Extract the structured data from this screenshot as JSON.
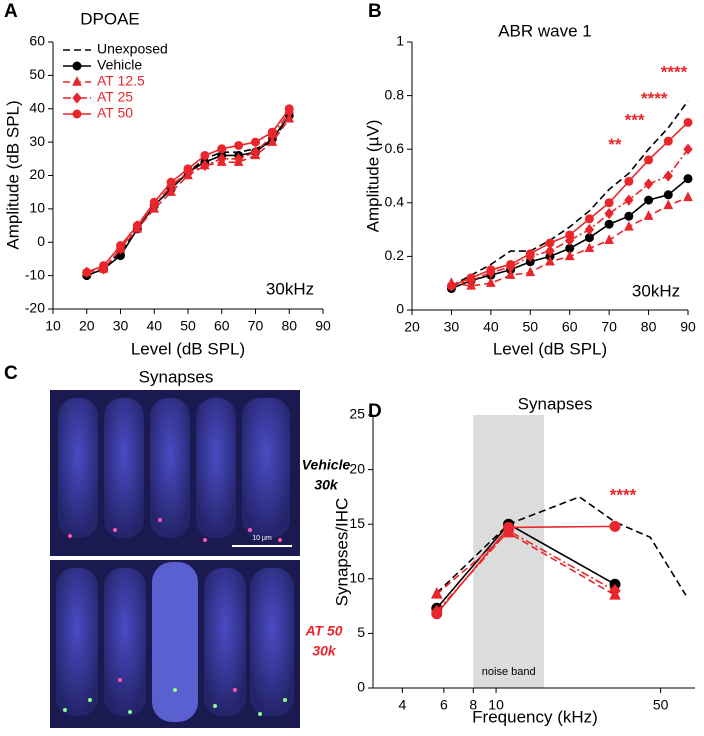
{
  "chart_data": [
    {
      "type": "line",
      "panel_label": "A",
      "title": "DPOAE",
      "xlabel": "Level (dB SPL)",
      "ylabel": "Amplitude (dB SPL)",
      "annotation": "30kHz",
      "x": [
        20,
        25,
        30,
        35,
        40,
        45,
        50,
        55,
        60,
        65,
        70,
        75,
        80
      ],
      "xlim": [
        10,
        90
      ],
      "xticks": [
        10,
        20,
        30,
        40,
        50,
        60,
        70,
        80,
        90
      ],
      "ylim": [
        -20,
        60
      ],
      "yticks": [
        -20,
        -10,
        0,
        10,
        20,
        30,
        40,
        50,
        60
      ],
      "legend": "upper left",
      "series": [
        {
          "name": "Unexposed",
          "color": "#000000",
          "dash": "dashed",
          "values": [
            -10,
            -8,
            -3,
            4,
            11,
            16,
            21,
            25,
            27,
            27,
            28,
            30,
            38
          ]
        },
        {
          "name": "Vehicle",
          "color": "#000000",
          "dash": "solid",
          "marker": "circle",
          "values": [
            -10,
            -8,
            -4,
            4,
            11,
            16,
            21,
            24,
            26,
            26,
            27,
            31,
            38
          ]
        },
        {
          "name": "AT 12.5",
          "color": "#e8262b",
          "dash": "dashed",
          "marker": "triangle",
          "values": [
            -9,
            -8,
            -2,
            4,
            10,
            15,
            20,
            23,
            24,
            24,
            26,
            30,
            37
          ]
        },
        {
          "name": "AT 25",
          "color": "#e8262b",
          "dash": "dashdot",
          "marker": "diamond",
          "values": [
            -9,
            -8,
            -2,
            5,
            11,
            17,
            21,
            23,
            25,
            25,
            27,
            32,
            39
          ]
        },
        {
          "name": "AT 50",
          "color": "#e8262b",
          "dash": "solid",
          "marker": "circle",
          "values": [
            -9,
            -7,
            -1,
            5,
            12,
            18,
            22,
            26,
            28,
            29,
            30,
            33,
            40
          ]
        }
      ]
    },
    {
      "type": "line",
      "panel_label": "B",
      "title": "ABR wave 1",
      "xlabel": "Level (dB SPL)",
      "ylabel": "Amplitude (µV)",
      "annotation": "30kHz",
      "x": [
        30,
        35,
        40,
        45,
        50,
        55,
        60,
        65,
        70,
        75,
        80,
        85,
        90
      ],
      "xlim": [
        20,
        90
      ],
      "xticks": [
        20,
        30,
        40,
        50,
        60,
        70,
        80,
        90
      ],
      "ylim": [
        0,
        1
      ],
      "yticks": [
        0,
        0.2,
        0.4,
        0.6,
        0.8,
        1
      ],
      "significance": [
        {
          "x": 75,
          "text": "**"
        },
        {
          "x": 80,
          "text": "***"
        },
        {
          "x": 85,
          "text": "****"
        },
        {
          "x": 90,
          "text": "****"
        }
      ],
      "significance_color": "#e8262b",
      "series": [
        {
          "color": "#000000",
          "dash": "dashed",
          "values": [
            0.09,
            0.13,
            0.17,
            0.22,
            0.22,
            0.26,
            0.31,
            0.37,
            0.45,
            0.51,
            0.6,
            0.68,
            0.78
          ]
        },
        {
          "color": "#000000",
          "dash": "solid",
          "marker": "circle",
          "values": [
            0.08,
            0.11,
            0.13,
            0.15,
            0.18,
            0.2,
            0.23,
            0.27,
            0.32,
            0.35,
            0.41,
            0.43,
            0.49
          ]
        },
        {
          "color": "#e8262b",
          "dash": "dashed",
          "marker": "triangle",
          "values": [
            0.1,
            0.09,
            0.1,
            0.13,
            0.14,
            0.18,
            0.2,
            0.23,
            0.26,
            0.31,
            0.35,
            0.39,
            0.42
          ]
        },
        {
          "color": "#e8262b",
          "dash": "dashdot",
          "marker": "diamond",
          "values": [
            0.09,
            0.11,
            0.14,
            0.16,
            0.2,
            0.22,
            0.26,
            0.3,
            0.36,
            0.41,
            0.47,
            0.5,
            0.6
          ]
        },
        {
          "color": "#e8262b",
          "dash": "solid",
          "marker": "circle",
          "values": [
            0.09,
            0.12,
            0.15,
            0.17,
            0.21,
            0.25,
            0.28,
            0.34,
            0.4,
            0.48,
            0.56,
            0.63,
            0.7
          ]
        }
      ]
    },
    {
      "type": "line",
      "panel_label": "D",
      "title": "Synapses",
      "xlabel": "Frequency (kHz)",
      "ylabel": "Synapses/IHC",
      "xlog": true,
      "xlim": [
        3,
        70
      ],
      "xticks": [
        4,
        6,
        8,
        10,
        50
      ],
      "ylim": [
        0,
        25
      ],
      "yticks": [
        0,
        5,
        10,
        15,
        20,
        25
      ],
      "band": {
        "from": 8,
        "to": 16,
        "label": "noise band",
        "color": "#dcdcdc"
      },
      "significance": [
        {
          "x": 32,
          "text": "****"
        }
      ],
      "significance_color": "#e8262b",
      "series": [
        {
          "color": "#000000",
          "dash": "dashed",
          "x": [
            5.6,
            11.3,
            22.6,
            32,
            45.2,
            64
          ],
          "values": [
            8.7,
            15,
            17.5,
            15.2,
            13.8,
            8.5
          ]
        },
        {
          "color": "#000000",
          "dash": "solid",
          "marker": "circle",
          "x": [
            5.6,
            11.3,
            32
          ],
          "values": [
            7.3,
            15,
            9.5
          ]
        },
        {
          "color": "#e8262b",
          "dash": "dashed",
          "marker": "triangle",
          "x": [
            5.6,
            11.3,
            32
          ],
          "values": [
            8.6,
            14.2,
            8.5
          ]
        },
        {
          "color": "#e8262b",
          "dash": "dashdot",
          "marker": "diamond",
          "x": [
            5.6,
            11.3,
            32
          ],
          "values": [
            7,
            14.4,
            8.9
          ]
        },
        {
          "color": "#e8262b",
          "dash": "solid",
          "marker": "circle",
          "x": [
            5.6,
            11.3,
            32
          ],
          "values": [
            6.8,
            14.7,
            14.8
          ]
        }
      ]
    }
  ],
  "image_panel": {
    "panel_label": "C",
    "title": "Synapses",
    "top_label": [
      "Vehicle",
      "30k"
    ],
    "bottom_label": [
      "AT 50",
      "30k"
    ],
    "scale_bar": "10 μm"
  }
}
